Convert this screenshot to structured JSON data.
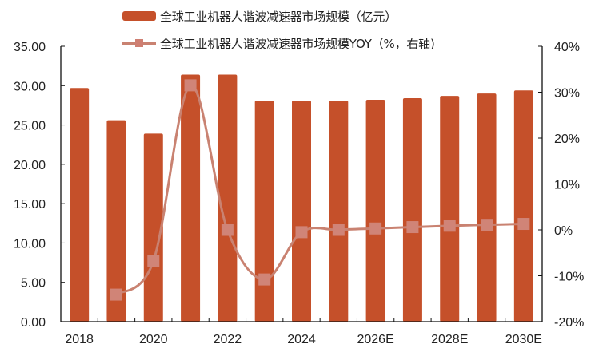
{
  "chart_data": {
    "type": "bar+line",
    "title": "",
    "categories": [
      "2018",
      "2019",
      "2020",
      "2021",
      "2022",
      "2023",
      "2024",
      "2025E",
      "2026E",
      "2027E",
      "2028E",
      "2029E",
      "2030E"
    ],
    "x_tick_labels": [
      "2018",
      "2020",
      "2022",
      "2024",
      "2026E",
      "2028E",
      "2030E"
    ],
    "series": [
      {
        "name": "全球工业机器人谐波减速器市场规模（亿元）",
        "type": "bar",
        "axis": "left",
        "color": "#C5502A",
        "values": [
          29.7,
          25.6,
          23.9,
          31.4,
          31.4,
          28.1,
          28.1,
          28.1,
          28.2,
          28.4,
          28.7,
          29.0,
          29.4
        ]
      },
      {
        "name": "全球工业机器人谐波减速器市场规模YOY（%，右轴)",
        "type": "line",
        "axis": "right",
        "color": "#C98271",
        "marker": "square",
        "values": [
          null,
          -14.1,
          -6.8,
          31.5,
          0.0,
          -10.8,
          -0.5,
          0.0,
          0.3,
          0.6,
          0.9,
          1.1,
          1.3
        ]
      }
    ],
    "left_axis": {
      "ylim": [
        0,
        35
      ],
      "ticks": [
        0,
        5,
        10,
        15,
        20,
        25,
        30,
        35
      ],
      "tick_labels": [
        "0.00",
        "5.00",
        "10.00",
        "15.00",
        "20.00",
        "25.00",
        "30.00",
        "35.00"
      ]
    },
    "right_axis": {
      "ylim": [
        -20,
        40
      ],
      "ticks": [
        -20,
        -10,
        0,
        10,
        20,
        30,
        40
      ],
      "tick_labels": [
        "-20%",
        "-10%",
        "0%",
        "10%",
        "20%",
        "30%",
        "40%"
      ]
    },
    "xlabel": "",
    "ylabel": "",
    "grid": false,
    "legend_position": "top"
  },
  "legend": {
    "bar_label": "全球工业机器人谐波减速器市场规模（亿元）",
    "line_label": "全球工业机器人谐波减速器市场规模YOY（%，右轴)"
  }
}
